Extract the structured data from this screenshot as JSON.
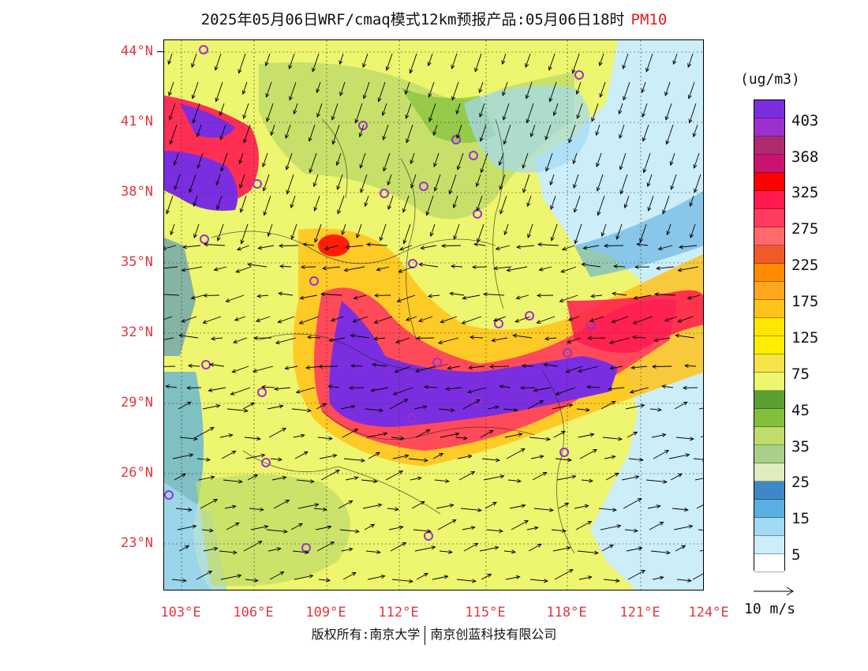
{
  "title": {
    "text": "2025年05月06日WRF/cmaq模式12km预报产品:05月06日18时",
    "product": "PM10"
  },
  "axes": {
    "lat_labels": [
      "44°N",
      "41°N",
      "38°N",
      "35°N",
      "32°N",
      "29°N",
      "26°N",
      "23°N"
    ],
    "lon_labels": [
      "103°E",
      "106°E",
      "109°E",
      "112°E",
      "115°E",
      "118°E",
      "121°E",
      "124°E"
    ]
  },
  "legend": {
    "unit": "(ug/m3)",
    "labels": [
      "403",
      "368",
      "325",
      "275",
      "225",
      "175",
      "125",
      "75",
      "45",
      "35",
      "25",
      "15",
      "5"
    ],
    "colors": [
      "#7b2ee0",
      "#9b30cf",
      "#b02a6e",
      "#c9136e",
      "#ff0000",
      "#ff1a50",
      "#ff3c5f",
      "#ff6a6a",
      "#f05a28",
      "#ff8c00",
      "#ffa81f",
      "#ffc21a",
      "#ffe600",
      "#ffee00",
      "#f5e34a",
      "#eef56e",
      "#5aa032",
      "#82c03c",
      "#c0dc6a",
      "#a8d088",
      "#e0ecbe",
      "#3f88c5",
      "#5aaee0",
      "#a2daf4",
      "#cceef8",
      "#ffffff"
    ]
  },
  "wind": {
    "reference_label": "10 m/s"
  },
  "footer": {
    "copyright": "版权所有:南京大学",
    "company": "南京创蓝科技有限公司"
  },
  "map_colors": {
    "ocean": "#d8eef8",
    "background": "#eef56e",
    "city_marker": "#9b30cf",
    "arrow": "#000000",
    "boundary": "#222222"
  }
}
